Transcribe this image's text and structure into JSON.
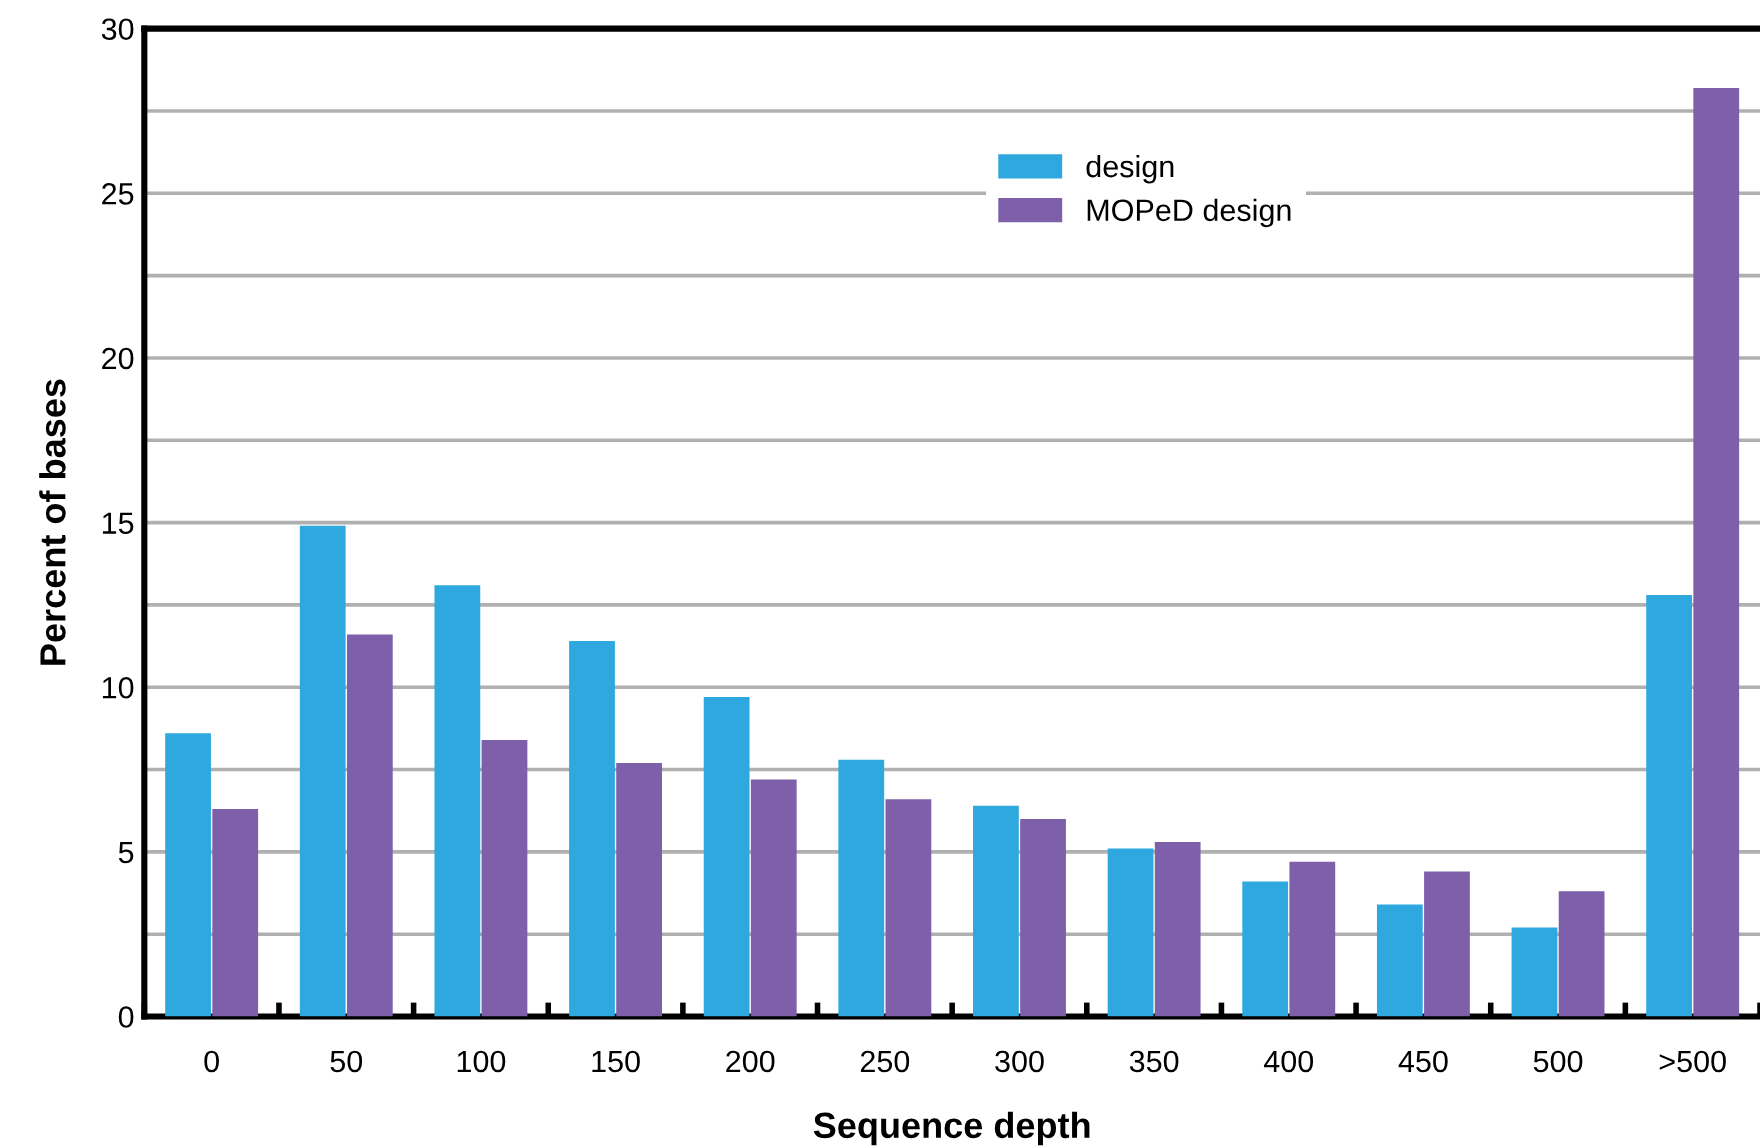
{
  "chart_data": {
    "type": "bar",
    "xlabel": "Sequence depth",
    "ylabel": "Percent of bases",
    "categories": [
      "0",
      "50",
      "100",
      "150",
      "200",
      "250",
      "300",
      "350",
      "400",
      "450",
      "500",
      ">500"
    ],
    "series": [
      {
        "name": "design",
        "color": "#2ea8df",
        "values": [
          8.6,
          14.9,
          13.1,
          11.4,
          9.7,
          7.8,
          6.4,
          5.1,
          4.1,
          3.4,
          2.7,
          12.8
        ]
      },
      {
        "name": "MOPeD design",
        "color": "#7e5faa",
        "values": [
          6.3,
          11.6,
          8.4,
          7.7,
          7.2,
          6.6,
          6.0,
          5.3,
          4.7,
          4.4,
          3.8,
          28.2
        ]
      }
    ],
    "ylim": [
      0,
      30
    ],
    "yticks": [
      0,
      {
        "value": 2.5,
        "label": null
      },
      5,
      {
        "value": 7.5,
        "label": null
      },
      10,
      {
        "value": 12.5,
        "label": null
      },
      15,
      {
        "value": 17.5,
        "label": null
      },
      20,
      {
        "value": 22.5,
        "label": null
      },
      25,
      {
        "value": 27.5,
        "label": null
      },
      30
    ],
    "grid": "y",
    "legend": "top"
  }
}
